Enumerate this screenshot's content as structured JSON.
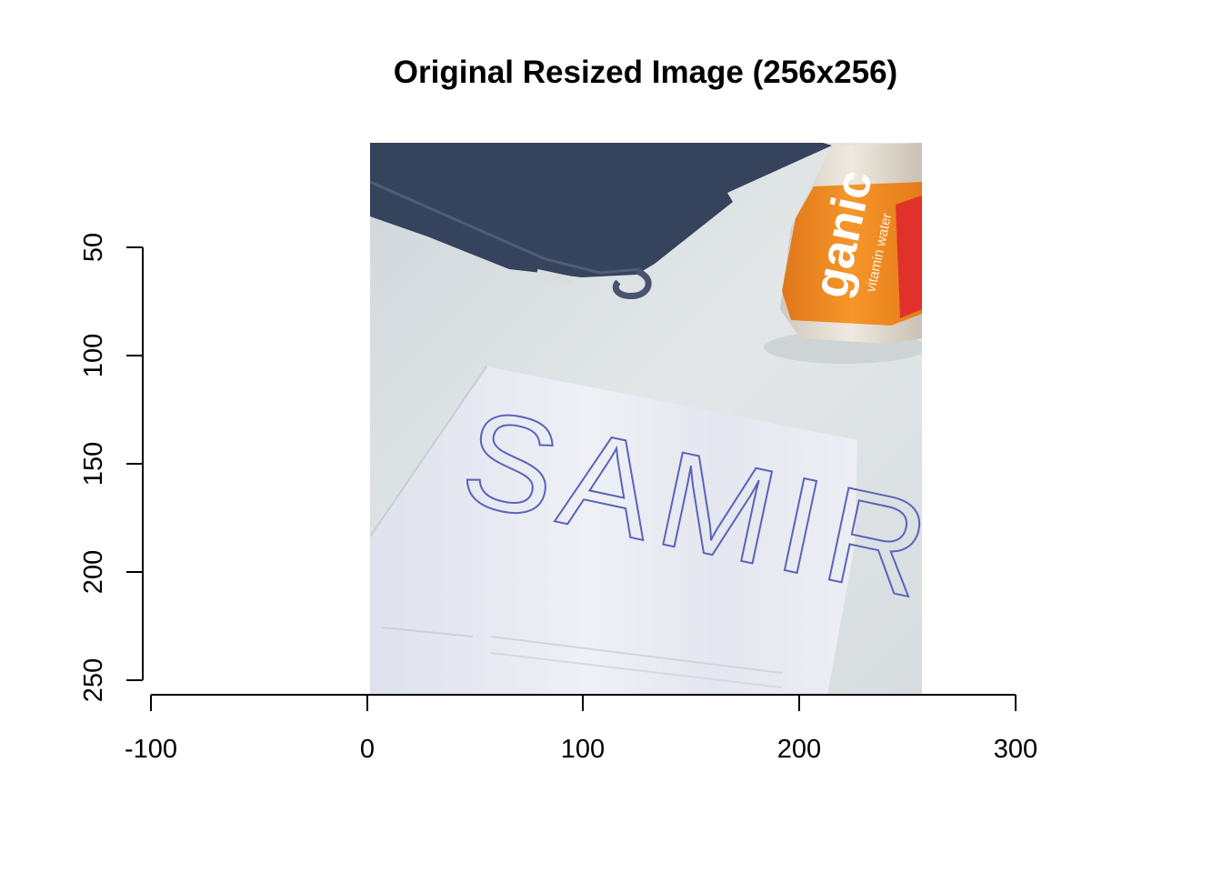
{
  "title": "Original Resized Image (256x256)",
  "x_axis": {
    "ticks": [
      -100,
      0,
      100,
      200,
      300
    ],
    "labels": [
      "-100",
      "0",
      "100",
      "200",
      "300"
    ]
  },
  "y_axis": {
    "ticks": [
      50,
      100,
      150,
      200,
      250
    ],
    "labels": [
      "50",
      "100",
      "150",
      "200",
      "250"
    ]
  },
  "image": {
    "handwritten_text": "SAMIR",
    "bottle_label": "ganic",
    "bottle_sublabel": "vitamin water",
    "colors": {
      "table": "#dfe4e6",
      "paper": "#e9ecf3",
      "towel": "#36435c",
      "label": "#f08a1c",
      "label_red": "#e0322a",
      "ink": "#5a63b8"
    }
  }
}
